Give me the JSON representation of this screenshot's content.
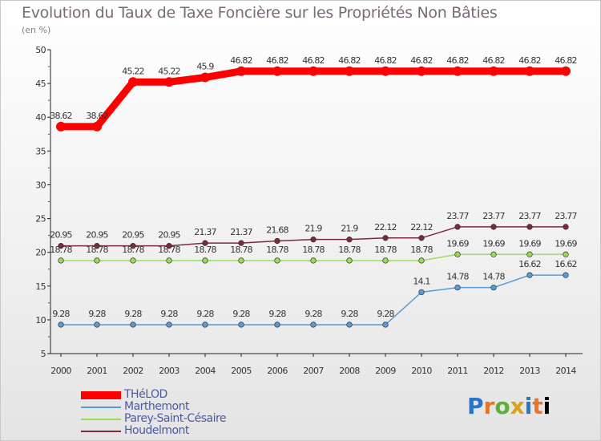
{
  "chart_data": {
    "type": "line",
    "title": "Evolution du Taux de Taxe Foncière sur les Propriétés Non Bâties",
    "subtitle": "(en %)",
    "xlabel": "",
    "ylabel": "(en %)",
    "ylim": [
      5,
      50
    ],
    "yticks": [
      "5",
      "10",
      "15",
      "20",
      "25",
      "30",
      "35",
      "40",
      "45",
      "50"
    ],
    "x": [
      "2000",
      "2001",
      "2002",
      "2003",
      "2004",
      "2005",
      "2006",
      "2007",
      "2008",
      "2009",
      "2010",
      "2011",
      "2012",
      "2013",
      "2014"
    ],
    "grid": false,
    "legend_position": "bottom-left",
    "series": [
      {
        "name": "THéLOD",
        "color": "#ff0000",
        "values": [
          38.62,
          38.62,
          45.22,
          45.22,
          45.9,
          46.82,
          46.82,
          46.82,
          46.82,
          46.82,
          46.82,
          46.82,
          46.82,
          46.82,
          46.82
        ],
        "labels": [
          "38.62",
          "38.62",
          "45.22",
          "45.22",
          "45.9",
          "46.82",
          "46.82",
          "46.82",
          "46.82",
          "46.82",
          "46.82",
          "46.82",
          "46.82",
          "46.82",
          "46.82"
        ]
      },
      {
        "name": "Marthemont",
        "color": "#5b9bd5",
        "values": [
          9.28,
          9.28,
          9.28,
          9.28,
          9.28,
          9.28,
          9.28,
          9.28,
          9.28,
          9.28,
          14.1,
          14.78,
          14.78,
          16.62,
          16.62
        ],
        "labels": [
          "9.28",
          "9.28",
          "9.28",
          "9.28",
          "9.28",
          "9.28",
          "9.28",
          "9.28",
          "9.28",
          "9.28",
          "14.1",
          "14.78",
          "14.78",
          "16.62",
          "16.62"
        ]
      },
      {
        "name": "Parey-Saint-Césaire",
        "color": "#99dd55",
        "values": [
          18.78,
          18.78,
          18.78,
          18.78,
          18.78,
          18.78,
          18.78,
          18.78,
          18.78,
          18.78,
          18.78,
          19.69,
          19.69,
          19.69,
          19.69
        ],
        "labels": [
          "18.78",
          "18.78",
          "18.78",
          "18.78",
          "18.78",
          "18.78",
          "18.78",
          "18.78",
          "18.78",
          "18.78",
          "18.78",
          "19.69",
          "19.69",
          "19.69",
          "19.69"
        ]
      },
      {
        "name": "Houdelmont",
        "color": "#7a2a3a",
        "values": [
          20.95,
          20.95,
          20.95,
          20.95,
          21.37,
          21.37,
          21.68,
          21.9,
          21.9,
          22.12,
          22.12,
          23.77,
          23.77,
          23.77,
          23.77
        ],
        "labels": [
          "20.95",
          "20.95",
          "20.95",
          "20.95",
          "21.37",
          "21.37",
          "21.68",
          "21.9",
          "21.9",
          "22.12",
          "22.12",
          "23.77",
          "23.77",
          "23.77",
          "23.77"
        ]
      }
    ]
  },
  "logo": {
    "letters": [
      "P",
      "r",
      "o",
      "x",
      "i",
      "t",
      "i"
    ]
  }
}
